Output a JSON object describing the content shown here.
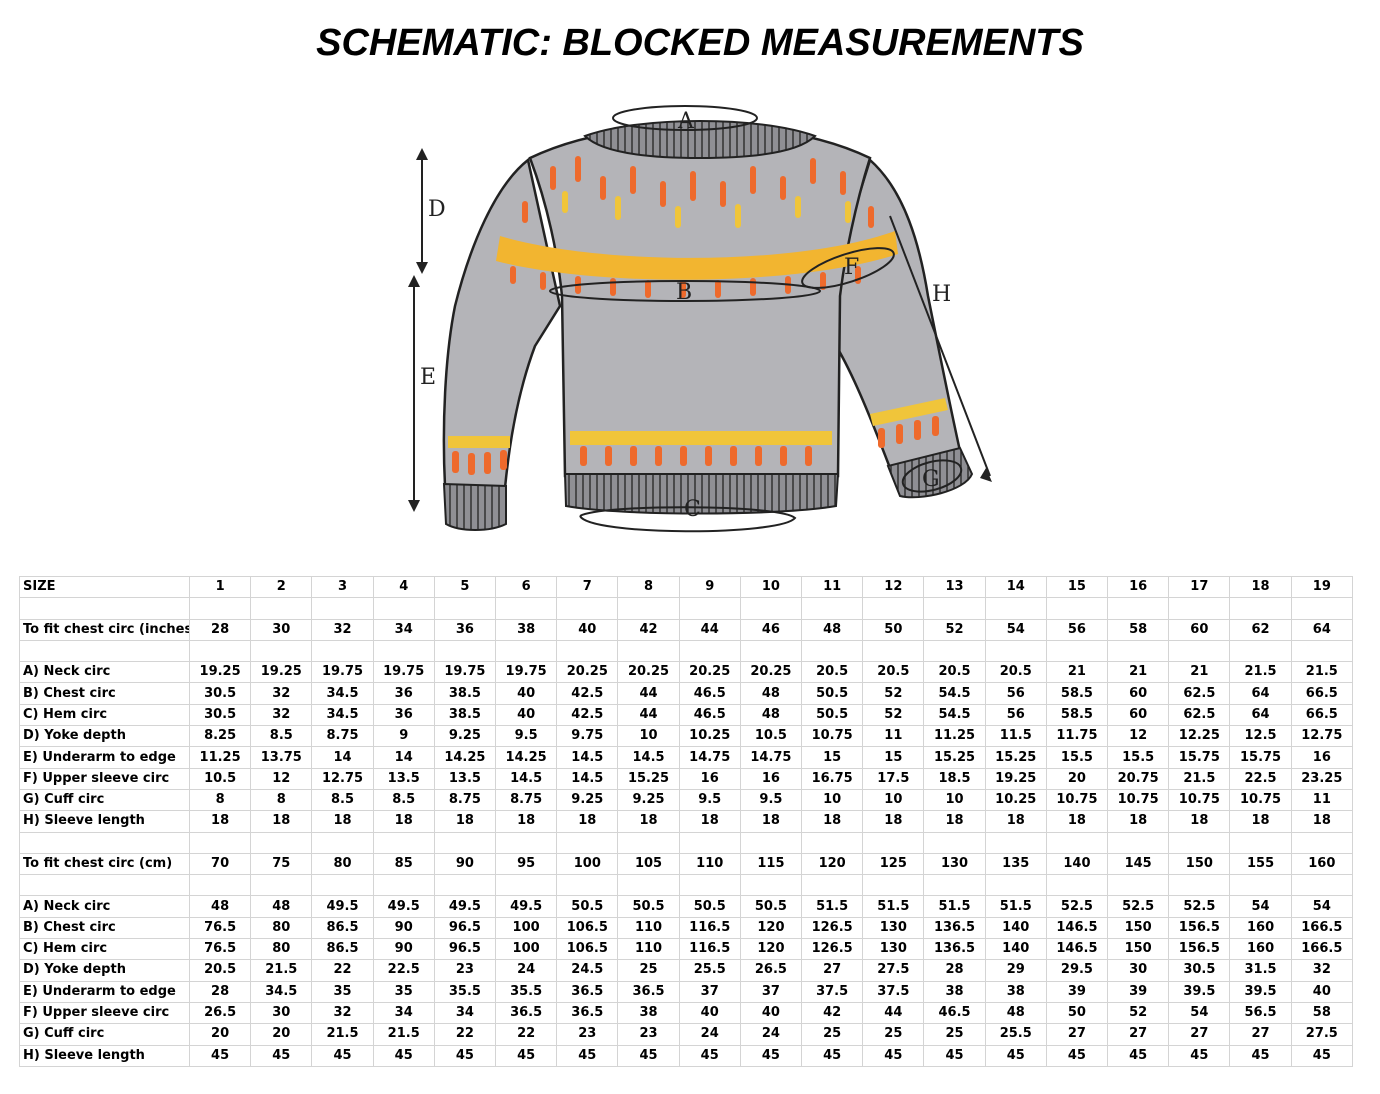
{
  "title": "SCHEMATIC: BLOCKED MEASUREMENTS",
  "schematic": {
    "labels": {
      "A": "A",
      "B": "B",
      "C": "C",
      "D": "D",
      "E": "E",
      "F": "F",
      "G": "G",
      "H": "H"
    },
    "colors": {
      "body": "#b4b4b8",
      "yoke_band": "#f2b530",
      "accent_orange": "#ee6a2c",
      "accent_yellow": "#f0c53a",
      "rib": "#8f8f94",
      "outline": "#222222"
    }
  },
  "table": {
    "rows": [
      {
        "type": "data",
        "label": "SIZE",
        "values": [
          "1",
          "2",
          "3",
          "4",
          "5",
          "6",
          "7",
          "8",
          "9",
          "10",
          "11",
          "12",
          "13",
          "14",
          "15",
          "16",
          "17",
          "18",
          "19"
        ]
      },
      {
        "type": "spacer"
      },
      {
        "type": "data",
        "label": "To fit chest circ (inches)",
        "values": [
          "28",
          "30",
          "32",
          "34",
          "36",
          "38",
          "40",
          "42",
          "44",
          "46",
          "48",
          "50",
          "52",
          "54",
          "56",
          "58",
          "60",
          "62",
          "64"
        ]
      },
      {
        "type": "spacer"
      },
      {
        "type": "data",
        "label": "A) Neck circ",
        "values": [
          "19.25",
          "19.25",
          "19.75",
          "19.75",
          "19.75",
          "19.75",
          "20.25",
          "20.25",
          "20.25",
          "20.25",
          "20.5",
          "20.5",
          "20.5",
          "20.5",
          "21",
          "21",
          "21",
          "21.5",
          "21.5"
        ]
      },
      {
        "type": "data",
        "label": "B) Chest circ",
        "values": [
          "30.5",
          "32",
          "34.5",
          "36",
          "38.5",
          "40",
          "42.5",
          "44",
          "46.5",
          "48",
          "50.5",
          "52",
          "54.5",
          "56",
          "58.5",
          "60",
          "62.5",
          "64",
          "66.5"
        ]
      },
      {
        "type": "data",
        "label": "C) Hem circ",
        "values": [
          "30.5",
          "32",
          "34.5",
          "36",
          "38.5",
          "40",
          "42.5",
          "44",
          "46.5",
          "48",
          "50.5",
          "52",
          "54.5",
          "56",
          "58.5",
          "60",
          "62.5",
          "64",
          "66.5"
        ]
      },
      {
        "type": "data",
        "label": "D) Yoke depth",
        "values": [
          "8.25",
          "8.5",
          "8.75",
          "9",
          "9.25",
          "9.5",
          "9.75",
          "10",
          "10.25",
          "10.5",
          "10.75",
          "11",
          "11.25",
          "11.5",
          "11.75",
          "12",
          "12.25",
          "12.5",
          "12.75"
        ]
      },
      {
        "type": "data",
        "label": "E) Underarm to edge",
        "values": [
          "11.25",
          "13.75",
          "14",
          "14",
          "14.25",
          "14.25",
          "14.5",
          "14.5",
          "14.75",
          "14.75",
          "15",
          "15",
          "15.25",
          "15.25",
          "15.5",
          "15.5",
          "15.75",
          "15.75",
          "16"
        ]
      },
      {
        "type": "data",
        "label": "F) Upper sleeve circ",
        "values": [
          "10.5",
          "12",
          "12.75",
          "13.5",
          "13.5",
          "14.5",
          "14.5",
          "15.25",
          "16",
          "16",
          "16.75",
          "17.5",
          "18.5",
          "19.25",
          "20",
          "20.75",
          "21.5",
          "22.5",
          "23.25"
        ]
      },
      {
        "type": "data",
        "label": "G) Cuff circ",
        "values": [
          "8",
          "8",
          "8.5",
          "8.5",
          "8.75",
          "8.75",
          "9.25",
          "9.25",
          "9.5",
          "9.5",
          "10",
          "10",
          "10",
          "10.25",
          "10.75",
          "10.75",
          "10.75",
          "10.75",
          "11"
        ]
      },
      {
        "type": "data",
        "label": "H) Sleeve length",
        "values": [
          "18",
          "18",
          "18",
          "18",
          "18",
          "18",
          "18",
          "18",
          "18",
          "18",
          "18",
          "18",
          "18",
          "18",
          "18",
          "18",
          "18",
          "18",
          "18"
        ]
      },
      {
        "type": "spacer"
      },
      {
        "type": "data",
        "label": "To fit chest circ (cm)",
        "values": [
          "70",
          "75",
          "80",
          "85",
          "90",
          "95",
          "100",
          "105",
          "110",
          "115",
          "120",
          "125",
          "130",
          "135",
          "140",
          "145",
          "150",
          "155",
          "160"
        ]
      },
      {
        "type": "spacer"
      },
      {
        "type": "data",
        "label": "A) Neck circ",
        "values": [
          "48",
          "48",
          "49.5",
          "49.5",
          "49.5",
          "49.5",
          "50.5",
          "50.5",
          "50.5",
          "50.5",
          "51.5",
          "51.5",
          "51.5",
          "51.5",
          "52.5",
          "52.5",
          "52.5",
          "54",
          "54"
        ]
      },
      {
        "type": "data",
        "label": "B) Chest circ",
        "values": [
          "76.5",
          "80",
          "86.5",
          "90",
          "96.5",
          "100",
          "106.5",
          "110",
          "116.5",
          "120",
          "126.5",
          "130",
          "136.5",
          "140",
          "146.5",
          "150",
          "156.5",
          "160",
          "166.5"
        ]
      },
      {
        "type": "data",
        "label": "C) Hem circ",
        "values": [
          "76.5",
          "80",
          "86.5",
          "90",
          "96.5",
          "100",
          "106.5",
          "110",
          "116.5",
          "120",
          "126.5",
          "130",
          "136.5",
          "140",
          "146.5",
          "150",
          "156.5",
          "160",
          "166.5"
        ]
      },
      {
        "type": "data",
        "label": "D) Yoke depth",
        "values": [
          "20.5",
          "21.5",
          "22",
          "22.5",
          "23",
          "24",
          "24.5",
          "25",
          "25.5",
          "26.5",
          "27",
          "27.5",
          "28",
          "29",
          "29.5",
          "30",
          "30.5",
          "31.5",
          "32"
        ]
      },
      {
        "type": "data",
        "label": "E) Underarm to edge",
        "values": [
          "28",
          "34.5",
          "35",
          "35",
          "35.5",
          "35.5",
          "36.5",
          "36.5",
          "37",
          "37",
          "37.5",
          "37.5",
          "38",
          "38",
          "39",
          "39",
          "39.5",
          "39.5",
          "40"
        ]
      },
      {
        "type": "data",
        "label": "F) Upper sleeve circ",
        "values": [
          "26.5",
          "30",
          "32",
          "34",
          "34",
          "36.5",
          "36.5",
          "38",
          "40",
          "40",
          "42",
          "44",
          "46.5",
          "48",
          "50",
          "52",
          "54",
          "56.5",
          "58"
        ]
      },
      {
        "type": "data",
        "label": "G) Cuff circ",
        "values": [
          "20",
          "20",
          "21.5",
          "21.5",
          "22",
          "22",
          "23",
          "23",
          "24",
          "24",
          "25",
          "25",
          "25",
          "25.5",
          "27",
          "27",
          "27",
          "27",
          "27.5"
        ]
      },
      {
        "type": "data",
        "label": "H) Sleeve length",
        "values": [
          "45",
          "45",
          "45",
          "45",
          "45",
          "45",
          "45",
          "45",
          "45",
          "45",
          "45",
          "45",
          "45",
          "45",
          "45",
          "45",
          "45",
          "45",
          "45"
        ]
      }
    ]
  }
}
